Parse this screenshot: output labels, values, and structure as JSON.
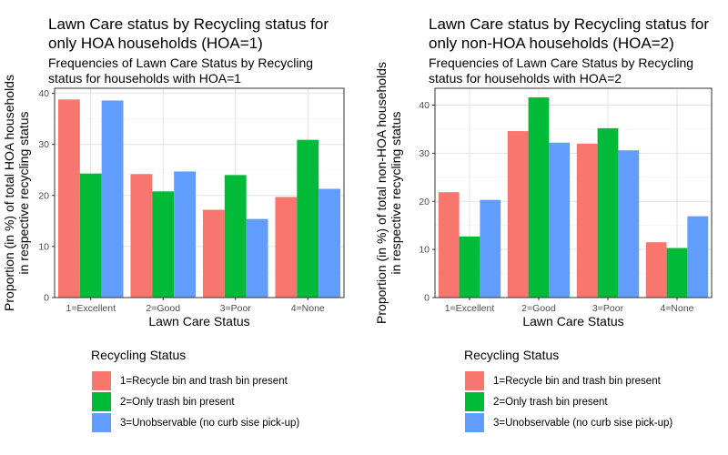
{
  "legend": {
    "title": "Recycling Status",
    "items": [
      {
        "label": "1=Recycle bin and trash bin present",
        "color": "#F8766D"
      },
      {
        "label": "2=Only trash bin present",
        "color": "#00BA38"
      },
      {
        "label": "3=Unobservable (no curb sise pick-up)",
        "color": "#619CFF"
      }
    ]
  },
  "chart_data": [
    {
      "type": "bar",
      "title": "Lawn Care status by Recycling status for\nonly HOA households (HOA=1)",
      "subtitle": "Frequencies of Lawn Care Status by Recycling\nstatus for households with HOA=1",
      "xlabel": "Lawn Care Status",
      "ylabel": "Proportion (in %) of total HOA households\nin respective recycling status",
      "categories": [
        "1=Excellent",
        "2=Good",
        "3=Poor",
        "4=None"
      ],
      "ylim": [
        0,
        41
      ],
      "yticks": [
        0,
        10,
        20,
        30,
        40
      ],
      "grid": true,
      "legend_position": "bottom",
      "series": [
        {
          "name": "1=Recycle bin and trash bin present",
          "values": [
            38.8,
            24.2,
            17.2,
            19.7
          ]
        },
        {
          "name": "2=Only trash bin present",
          "values": [
            24.3,
            20.8,
            24.0,
            30.9
          ]
        },
        {
          "name": "3=Unobservable (no curb sise pick-up)",
          "values": [
            38.6,
            24.7,
            15.4,
            21.3
          ]
        }
      ]
    },
    {
      "type": "bar",
      "title": "Lawn Care status by Recycling status for\nonly non-HOA households (HOA=2)",
      "subtitle": "Frequencies of Lawn Care Status by Recycling\nstatus for households with HOA=2",
      "xlabel": "Lawn Care Status",
      "ylabel": "Proportion (in %) of total non-HOA households\nin respective recycling status",
      "categories": [
        "1=Excellent",
        "2=Good",
        "3=Poor",
        "4=None"
      ],
      "ylim": [
        0,
        43.5
      ],
      "yticks": [
        0,
        10,
        20,
        30,
        40
      ],
      "grid": true,
      "legend_position": "bottom",
      "series": [
        {
          "name": "1=Recycle bin and trash bin present",
          "values": [
            21.9,
            34.6,
            32.0,
            11.5
          ]
        },
        {
          "name": "2=Only trash bin present",
          "values": [
            12.7,
            41.6,
            35.2,
            10.3
          ]
        },
        {
          "name": "3=Unobservable (no curb sise pick-up)",
          "values": [
            20.3,
            32.2,
            30.6,
            16.9
          ]
        }
      ]
    }
  ]
}
